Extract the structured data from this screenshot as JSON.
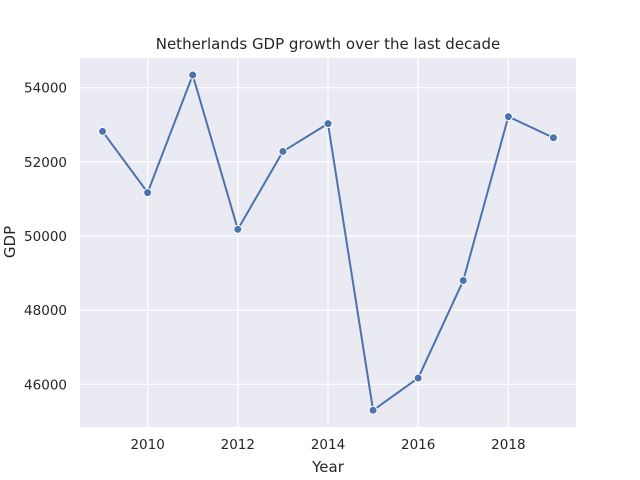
{
  "chart_data": {
    "type": "line",
    "title": "Netherlands GDP growth over the last decade",
    "xlabel": "Year",
    "ylabel": "GDP",
    "x": [
      2009,
      2010,
      2011,
      2012,
      2013,
      2014,
      2015,
      2016,
      2017,
      2018,
      2019
    ],
    "series": [
      {
        "values": [
          52820,
          51170,
          54340,
          50180,
          52280,
          53030,
          45300,
          46170,
          48800,
          53220,
          52650
        ]
      }
    ],
    "xlim": [
      2008.5,
      2019.5
    ],
    "ylim": [
      44850,
      54800
    ],
    "xticks": [
      2010,
      2012,
      2014,
      2016,
      2018
    ],
    "yticks": [
      46000,
      48000,
      50000,
      52000,
      54000
    ],
    "grid": true,
    "style": {
      "line_color": "#4c72b0",
      "background_color": "#eaeaf2",
      "grid_color": "#ffffff"
    }
  }
}
